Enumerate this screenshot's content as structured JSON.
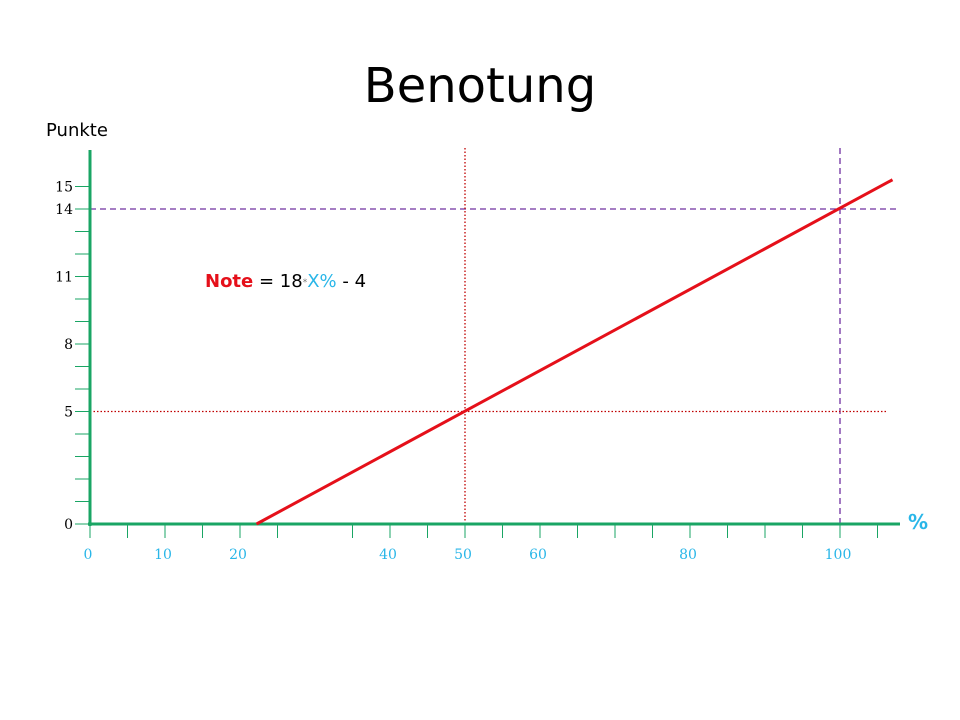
{
  "chart_data": {
    "type": "line",
    "title": "Benotung",
    "ylabel": "Punkte",
    "xlabel": "%",
    "formula": {
      "lhs": "Note",
      "eq": " = 18",
      "op": "*",
      "var": "X%",
      "rest": " - 4"
    },
    "xlim": [
      0,
      108
    ],
    "ylim": [
      0,
      16.5
    ],
    "x_tick_labels": [
      0,
      10,
      20,
      40,
      50,
      60,
      80,
      100
    ],
    "x_minor_ticks": [
      5,
      15,
      25,
      35,
      45,
      55,
      65,
      70,
      75,
      85,
      90,
      95,
      105
    ],
    "y_tick_labels": [
      0,
      5,
      8,
      11,
      14,
      15
    ],
    "y_minor_ticks": [
      1,
      2,
      3,
      4,
      6,
      7,
      9,
      10,
      12,
      13
    ],
    "series": [
      {
        "values": [
          [
            22.2,
            0
          ],
          [
            107,
            15.3
          ]
        ]
      }
    ],
    "reference_lines": [
      {
        "orientation": "horizontal",
        "value": 14,
        "style": "dashed"
      },
      {
        "orientation": "vertical",
        "value": 100,
        "style": "dashed"
      },
      {
        "orientation": "horizontal",
        "value": 5,
        "style": "dotted"
      },
      {
        "orientation": "vertical",
        "value": 50,
        "style": "dotted"
      }
    ],
    "grid": false,
    "colors": {
      "axis": "#1aa564",
      "line": "#e5101a",
      "dashed_ref": "#7030a0",
      "dotted_ref": "#c00000",
      "x_ticks": "#29b6e8"
    }
  }
}
